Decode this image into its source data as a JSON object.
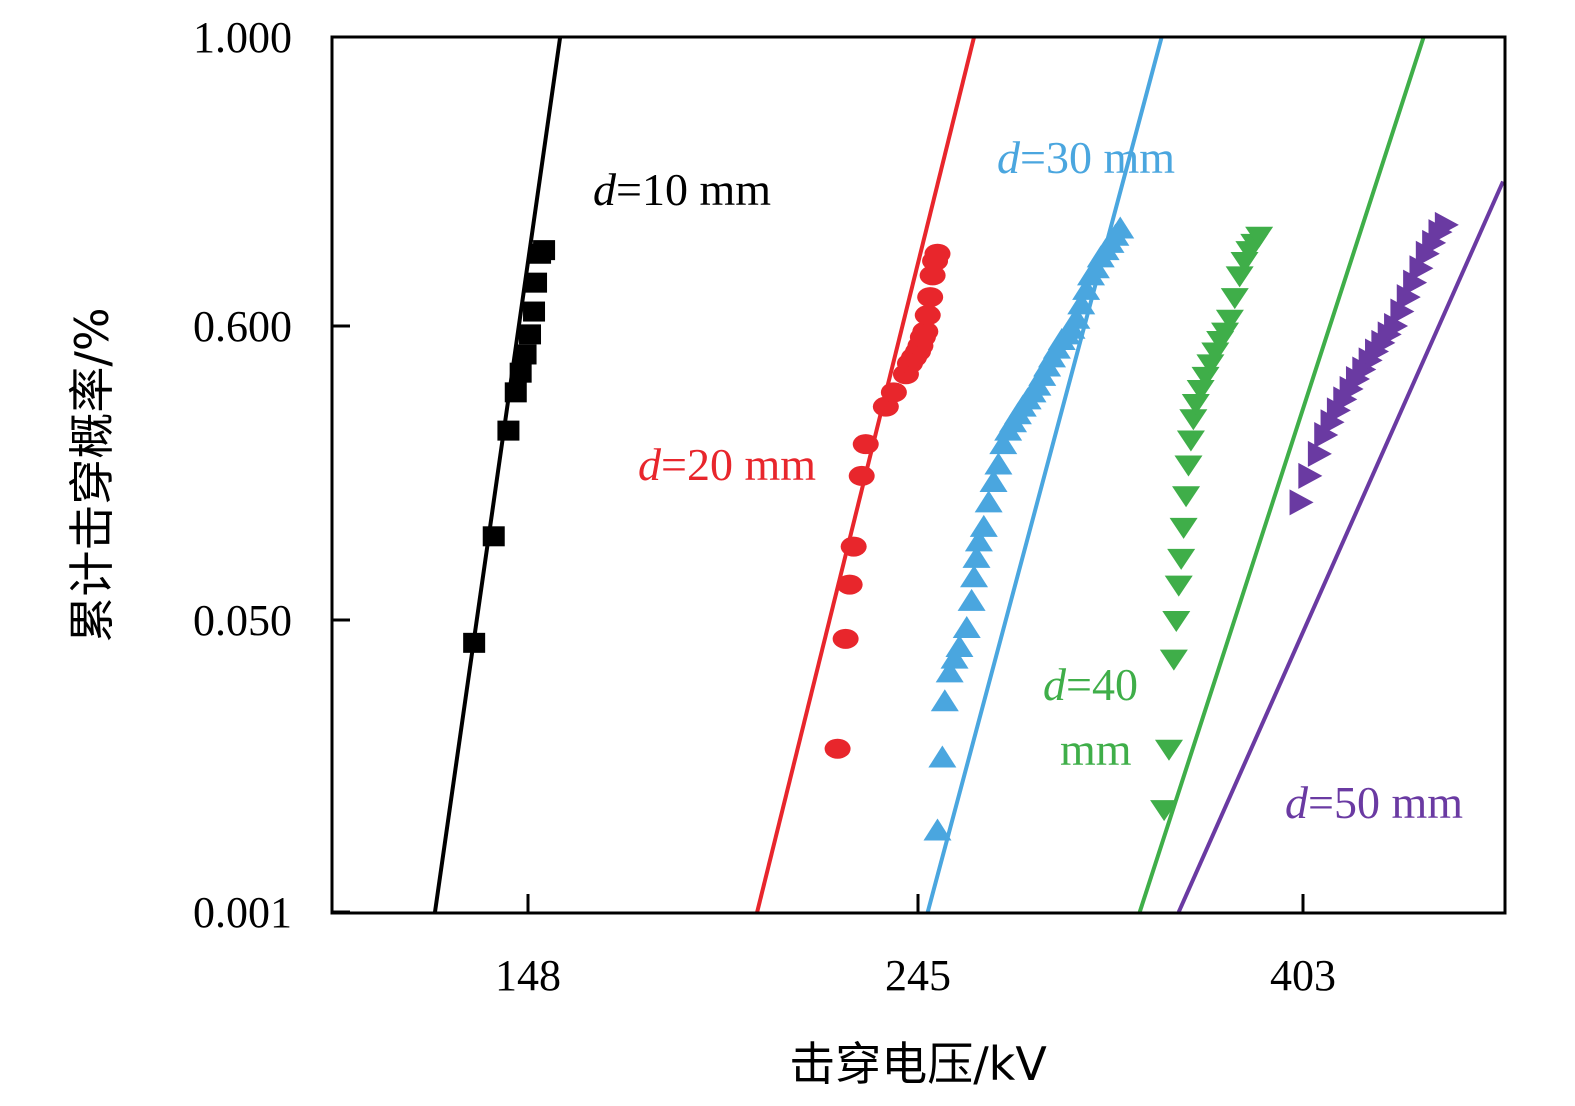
{
  "chart_data": {
    "type": "scatter",
    "title": "",
    "xlabel": "击穿电压/kV",
    "ylabel": "累计击穿概率/%",
    "x_ticks": [
      "148",
      "245",
      "403"
    ],
    "y_ticks": [
      "0.001",
      "0.050",
      "0.600",
      "1.000"
    ],
    "scale": "weibull",
    "grid": false,
    "legend": "none",
    "series": [
      {
        "name": "d=10 mm",
        "annotation": {
          "italic": "d",
          "rest": "=10 mm"
        },
        "color": "#000000",
        "marker": "square",
        "fit_line": [
          [
            129,
            0.001
          ],
          [
            156,
            1.0
          ]
        ],
        "points": [
          [
            137,
            0.037
          ],
          [
            141,
            0.11
          ],
          [
            144,
            0.28
          ],
          [
            145.5,
            0.38
          ],
          [
            146.5,
            0.44
          ],
          [
            147.5,
            0.5
          ],
          [
            148.5,
            0.57
          ],
          [
            149.5,
            0.62
          ],
          [
            150,
            0.66
          ],
          [
            151,
            0.7
          ],
          [
            152,
            0.705
          ]
        ]
      },
      {
        "name": "d=20 mm",
        "annotation": {
          "italic": "d",
          "rest": "=20 mm"
        },
        "color": "#e8262c",
        "marker": "circle",
        "fit_line": [
          [
            205,
            0.001
          ],
          [
            268,
            1.0
          ]
        ],
        "points": [
          [
            225,
            0.009
          ],
          [
            227,
            0.039
          ],
          [
            228,
            0.07
          ],
          [
            229,
            0.1
          ],
          [
            231,
            0.19
          ],
          [
            232,
            0.25
          ],
          [
            237,
            0.34
          ],
          [
            239,
            0.38
          ],
          [
            242,
            0.435
          ],
          [
            243,
            0.47
          ],
          [
            244,
            0.49
          ],
          [
            245,
            0.51
          ],
          [
            246,
            0.53
          ],
          [
            247,
            0.56
          ],
          [
            248,
            0.58
          ],
          [
            249,
            0.615
          ],
          [
            250,
            0.64
          ],
          [
            251,
            0.67
          ],
          [
            252,
            0.69
          ],
          [
            253,
            0.7
          ]
        ]
      },
      {
        "name": "d=30 mm",
        "annotation": {
          "italic": "d",
          "rest": "=30 mm"
        },
        "color": "#4aa6df",
        "marker": "triangle-up",
        "fit_line": [
          [
            249,
            0.001
          ],
          [
            345,
            1.0
          ]
        ],
        "points": [
          [
            253,
            0.003
          ],
          [
            255,
            0.008
          ],
          [
            256,
            0.017
          ],
          [
            258,
            0.025
          ],
          [
            260,
            0.03
          ],
          [
            262,
            0.035
          ],
          [
            265,
            0.045
          ],
          [
            267,
            0.06
          ],
          [
            268,
            0.075
          ],
          [
            269,
            0.09
          ],
          [
            270,
            0.105
          ],
          [
            272,
            0.12
          ],
          [
            274,
            0.15
          ],
          [
            276,
            0.18
          ],
          [
            278,
            0.21
          ],
          [
            280,
            0.25
          ],
          [
            282,
            0.28
          ],
          [
            284,
            0.3
          ],
          [
            286,
            0.32
          ],
          [
            288,
            0.34
          ],
          [
            290,
            0.36
          ],
          [
            292,
            0.38
          ],
          [
            294,
            0.4
          ],
          [
            296,
            0.43
          ],
          [
            298,
            0.46
          ],
          [
            300,
            0.49
          ],
          [
            302,
            0.52
          ],
          [
            304,
            0.55
          ],
          [
            306,
            0.57
          ],
          [
            308,
            0.59
          ],
          [
            310,
            0.61
          ],
          [
            312,
            0.63
          ],
          [
            314,
            0.65
          ],
          [
            316,
            0.67
          ],
          [
            318,
            0.68
          ],
          [
            320,
            0.695
          ],
          [
            322,
            0.705
          ],
          [
            324,
            0.715
          ],
          [
            326,
            0.725
          ],
          [
            328,
            0.735
          ]
        ]
      },
      {
        "name": "d=40 mm",
        "annotation": {
          "italic": "d",
          "rest": "=40",
          "line2": "mm"
        },
        "color": "#3fae49",
        "marker": "triangle-down",
        "fit_line": [
          [
            336,
            0.001
          ],
          [
            441,
            1.0
          ]
        ],
        "points": [
          [
            346,
            0.004
          ],
          [
            348,
            0.009
          ],
          [
            350,
            0.03
          ],
          [
            351,
            0.05
          ],
          [
            352,
            0.07
          ],
          [
            353,
            0.09
          ],
          [
            354,
            0.12
          ],
          [
            355,
            0.16
          ],
          [
            356,
            0.21
          ],
          [
            357,
            0.26
          ],
          [
            358,
            0.31
          ],
          [
            359,
            0.35
          ],
          [
            361,
            0.39
          ],
          [
            363,
            0.43
          ],
          [
            365,
            0.47
          ],
          [
            367,
            0.51
          ],
          [
            369,
            0.55
          ],
          [
            371,
            0.58
          ],
          [
            373,
            0.61
          ],
          [
            375,
            0.64
          ],
          [
            377,
            0.67
          ],
          [
            379,
            0.69
          ],
          [
            381,
            0.705
          ],
          [
            383,
            0.715
          ],
          [
            385,
            0.725
          ]
        ]
      },
      {
        "name": "d=50 mm",
        "annotation": {
          "italic": "d",
          "rest": "=50 mm"
        },
        "color": "#6a3aa2",
        "marker": "triangle-right",
        "fit_line": [
          [
            352,
            0.001
          ],
          [
            466,
            0.8
          ]
        ],
        "points": [
          [
            402,
            0.15
          ],
          [
            405,
            0.19
          ],
          [
            408,
            0.23
          ],
          [
            410,
            0.27
          ],
          [
            412,
            0.3
          ],
          [
            414,
            0.33
          ],
          [
            416,
            0.36
          ],
          [
            418,
            0.39
          ],
          [
            420,
            0.42
          ],
          [
            422,
            0.45
          ],
          [
            424,
            0.48
          ],
          [
            426,
            0.51
          ],
          [
            428,
            0.54
          ],
          [
            430,
            0.57
          ],
          [
            432,
            0.6
          ],
          [
            434,
            0.62
          ],
          [
            436,
            0.64
          ],
          [
            438,
            0.66
          ],
          [
            440,
            0.68
          ],
          [
            442,
            0.7
          ],
          [
            444,
            0.715
          ],
          [
            446,
            0.73
          ],
          [
            448,
            0.74
          ]
        ]
      }
    ]
  }
}
